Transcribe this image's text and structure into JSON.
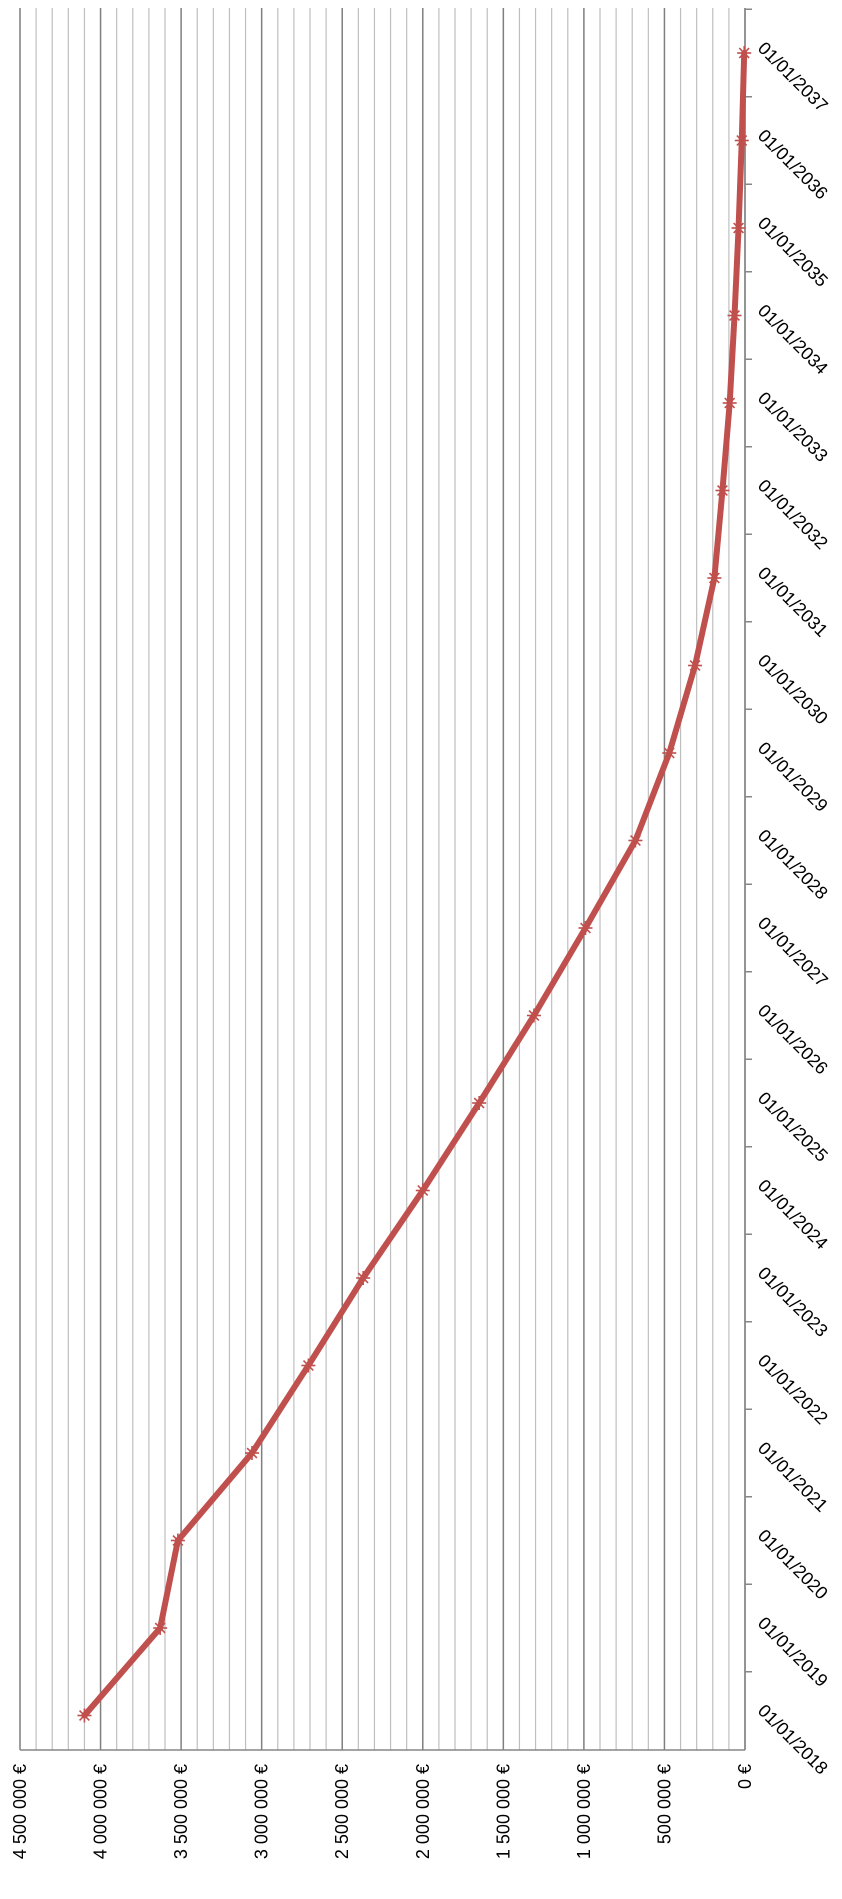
{
  "colors": {
    "series": "#c0504d",
    "major_grid": "#7f7f7f",
    "minor_grid": "#bfbfbf",
    "axis": "#868686",
    "text": "#000000"
  },
  "chart_data": {
    "type": "line",
    "orientation": "rotated-90-clockwise",
    "title": "",
    "xlabel": "",
    "ylabel": "",
    "grid": true,
    "legend": "none",
    "marker": "star",
    "x": [
      "01/01/2018",
      "01/01/2019",
      "01/01/2020",
      "01/01/2021",
      "01/01/2022",
      "01/01/2023",
      "01/01/2024",
      "01/01/2025",
      "01/01/2026",
      "01/01/2027",
      "01/01/2028",
      "01/01/2029",
      "01/01/2030",
      "01/01/2031",
      "01/01/2032",
      "01/01/2033",
      "01/01/2034",
      "01/01/2035",
      "01/01/2036",
      "01/01/2037"
    ],
    "series": [
      {
        "values": [
          4100000,
          3630000,
          3520000,
          3060000,
          2710000,
          2370000,
          2000000,
          1650000,
          1310000,
          990000,
          680000,
          470000,
          310000,
          190000,
          140000,
          95000,
          65000,
          40000,
          20000,
          5000
        ]
      }
    ],
    "ylim": [
      0,
      4500000
    ],
    "y_major_step": 500000,
    "y_minor_step": 100000,
    "y_ticks": [
      "0 €",
      "500 000 €",
      "1 000 000 €",
      "1 500 000 €",
      "2 000 000 €",
      "2 500 000 €",
      "3 000 000 €",
      "3 500 000 €",
      "4 000 000 €",
      "4 500 000 €"
    ]
  }
}
